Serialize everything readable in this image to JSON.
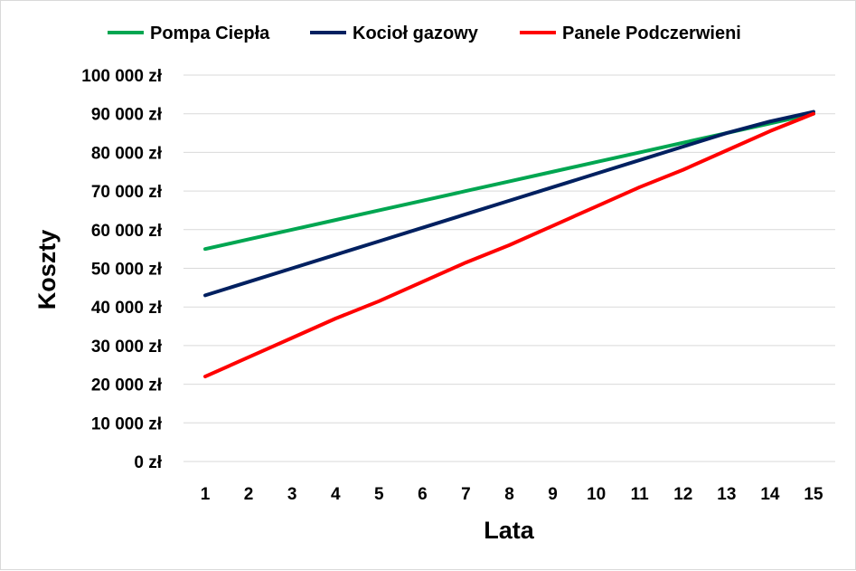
{
  "chart_data": {
    "type": "line",
    "title": "",
    "xlabel": "Lata",
    "ylabel": "Koszty",
    "categories": [
      "1",
      "2",
      "3",
      "4",
      "5",
      "6",
      "7",
      "8",
      "9",
      "10",
      "11",
      "12",
      "13",
      "14",
      "15"
    ],
    "ylim": [
      0,
      100000
    ],
    "ytick_labels": [
      "0 zł",
      "10 000 zł",
      "20 000 zł",
      "30 000 zł",
      "40 000 zł",
      "50 000 zł",
      "60 000 zł",
      "70 000 zł",
      "80 000 zł",
      "90 000 zł",
      "100 000 zł"
    ],
    "grid": true,
    "legend_position": "top",
    "series": [
      {
        "name": "Pompa Ciepła",
        "color": "#00a651",
        "values": [
          55000,
          57500,
          60000,
          62500,
          65000,
          67500,
          70000,
          72500,
          75000,
          77500,
          80000,
          82500,
          85000,
          87500,
          90000
        ]
      },
      {
        "name": "Kocioł gazowy",
        "color": "#002060",
        "values": [
          43000,
          46500,
          50000,
          53500,
          57000,
          60500,
          64000,
          67500,
          71000,
          74500,
          78000,
          81500,
          85000,
          88000,
          90500
        ]
      },
      {
        "name": "Panele Podczerwieni",
        "color": "#ff0000",
        "values": [
          22000,
          27000,
          32000,
          37000,
          41500,
          46500,
          51500,
          56000,
          61000,
          66000,
          71000,
          75500,
          80500,
          85500,
          90000
        ]
      }
    ]
  }
}
